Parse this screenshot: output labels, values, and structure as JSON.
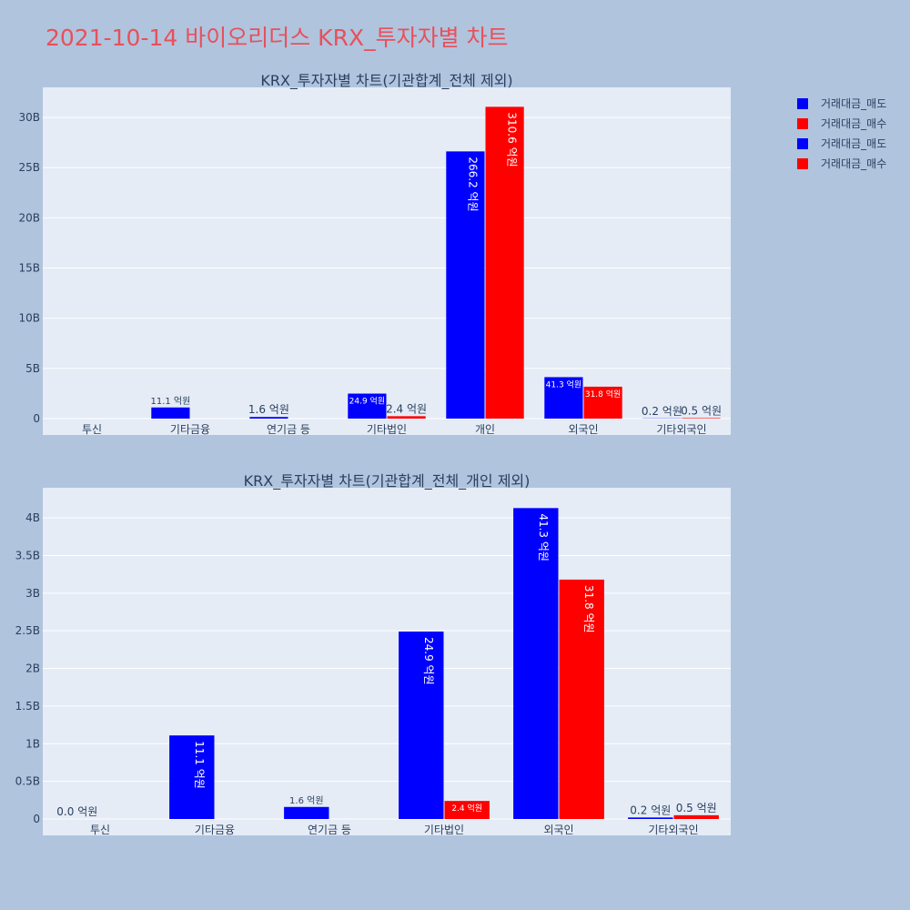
{
  "title": "2021-10-14 바이오리더스 KRX_투자자별 차트",
  "colors": {
    "sell": "#0000ff",
    "buy": "#ff0000",
    "plot_bg": "#e5ecf6",
    "paper_bg": "#b0c4de"
  },
  "legend": [
    "거래대금_매도",
    "거래대금_매수",
    "거래대금_매도",
    "거래대금_매수"
  ],
  "chart_data": [
    {
      "type": "bar",
      "title": "KRX_투자자별 차트(기관합계_전체 제외)",
      "categories": [
        "투신",
        "기타금융",
        "연기금 등",
        "기타법인",
        "개인",
        "외국인",
        "기타외국인"
      ],
      "series": [
        {
          "name": "거래대금_매도",
          "values": [
            0,
            1110000000,
            160000000,
            2490000000,
            26620000000,
            4130000000,
            20000000
          ],
          "labels": [
            "",
            "11.1 억원",
            "1.6 억원",
            "24.9 억원",
            "266.2 억원",
            "41.3 억원",
            "0.2 억원"
          ]
        },
        {
          "name": "거래대금_매수",
          "values": [
            0,
            0,
            0,
            240000000,
            31060000000,
            3180000000,
            50000000
          ],
          "labels": [
            "",
            "",
            "",
            "2.4 억원",
            "310.6 억원",
            "31.8 억원",
            "0.5 억원"
          ]
        }
      ],
      "ylim": [
        0,
        33000000000
      ],
      "yticks": [
        0,
        5000000000,
        10000000000,
        15000000000,
        20000000000,
        25000000000,
        30000000000
      ],
      "ytick_labels": [
        "0",
        "5B",
        "10B",
        "15B",
        "20B",
        "25B",
        "30B"
      ]
    },
    {
      "type": "bar",
      "title": "KRX_투자자별 차트(기관합계_전체_개인 제외)",
      "categories": [
        "투신",
        "기타금융",
        "연기금 등",
        "기타법인",
        "외국인",
        "기타외국인"
      ],
      "series": [
        {
          "name": "거래대금_매도",
          "values": [
            0,
            1110000000,
            160000000,
            2490000000,
            4130000000,
            20000000
          ],
          "labels": [
            "0.0 억원",
            "11.1 억원",
            "1.6 억원",
            "24.9 억원",
            "41.3 억원",
            "0.2 억원"
          ]
        },
        {
          "name": "거래대금_매수",
          "values": [
            0,
            0,
            0,
            240000000,
            3180000000,
            50000000
          ],
          "labels": [
            "",
            "",
            "",
            "2.4 억원",
            "31.8 억원",
            "0.5 억원"
          ]
        }
      ],
      "ylim": [
        0,
        4400000000
      ],
      "yticks": [
        0,
        500000000,
        1000000000,
        1500000000,
        2000000000,
        2500000000,
        3000000000,
        3500000000,
        4000000000
      ],
      "ytick_labels": [
        "0",
        "0.5B",
        "1B",
        "1.5B",
        "2B",
        "2.5B",
        "3B",
        "3.5B",
        "4B"
      ]
    }
  ]
}
